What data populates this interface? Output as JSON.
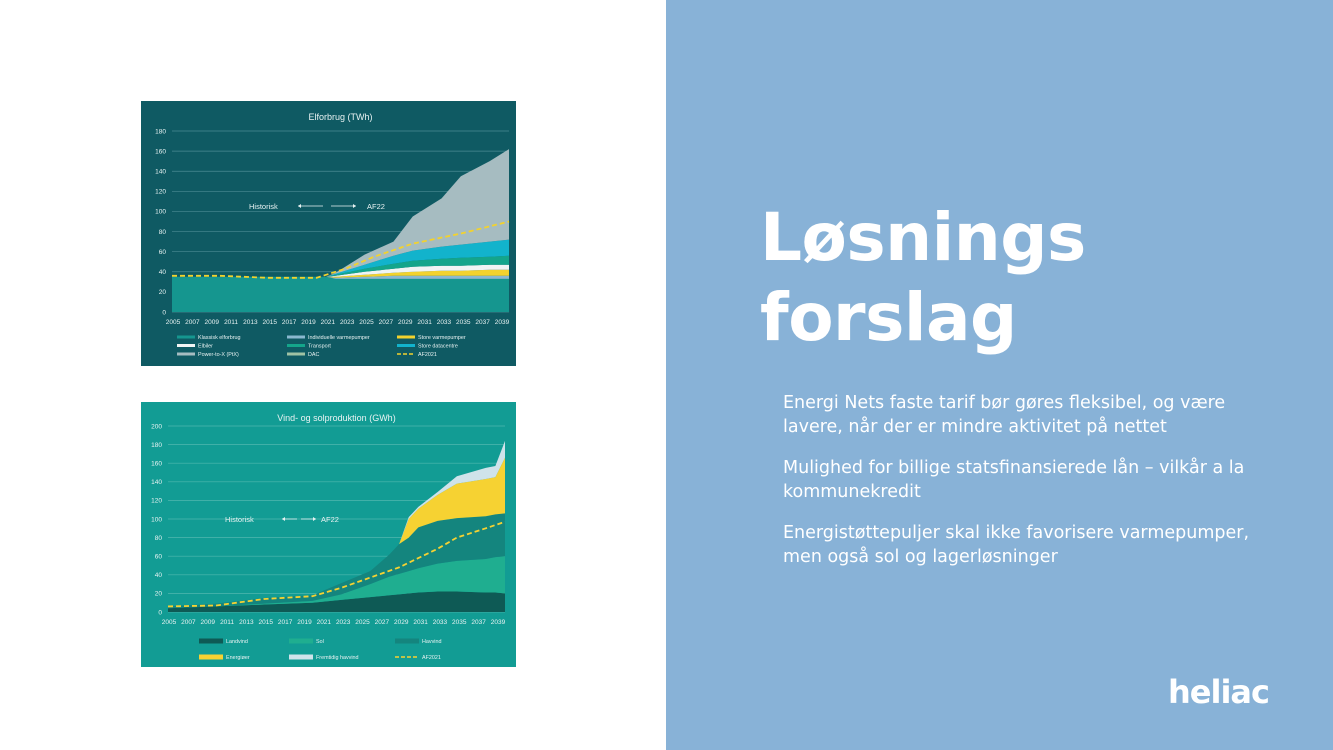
{
  "slide": {
    "title_line1": "Løsnings",
    "title_line2": "forslag",
    "bullets": [
      "Energi Nets faste tarif bør gøres fleksibel, og være lavere, når der er mindre aktivitet på nettet",
      "Mulighed for billige statsfinansierede lån – vilkår a la kommunekredit",
      "Energistøttepuljer skal ikke favorisere varmepumper, men også sol og lagerløsninger"
    ],
    "logo_text": "heliac",
    "colors": {
      "panel": "#88b2d7",
      "text": "#ffffff"
    }
  },
  "chart_data": [
    {
      "type": "area",
      "title": "Elforbrug (TWh)",
      "ylim": [
        0,
        180
      ],
      "yticks": [
        0,
        20,
        40,
        60,
        80,
        100,
        120,
        140,
        160,
        180
      ],
      "x": [
        2005,
        2020,
        2021,
        2022,
        2025,
        2028,
        2030,
        2033,
        2035,
        2038,
        2040
      ],
      "xtick_labels": [
        "2005",
        "2007",
        "2009",
        "2011",
        "2013",
        "2015",
        "2017",
        "2019",
        "2021",
        "2023",
        "2025",
        "2027",
        "2029",
        "2031",
        "2033",
        "2035",
        "2037",
        "2039"
      ],
      "annotations": [
        "Historisk",
        "AF22"
      ],
      "series": [
        {
          "name": "Klassisk elforbrug",
          "color": "#15968f",
          "values": [
            35,
            35,
            35,
            33,
            33,
            33,
            33,
            33,
            33,
            33,
            33
          ]
        },
        {
          "name": "Individuelle varmepumper",
          "color": "#8ab8cf",
          "values": [
            0,
            0,
            0,
            1,
            2,
            3,
            3,
            3,
            3,
            3,
            3
          ]
        },
        {
          "name": "Store varmepumper",
          "color": "#f2d22e",
          "values": [
            0,
            0,
            0,
            1,
            2,
            3,
            4,
            5,
            5,
            6,
            6
          ]
        },
        {
          "name": "Elbiler",
          "color": "#f0f4f4",
          "values": [
            0,
            0,
            0,
            1,
            3,
            4,
            5,
            5,
            5,
            5,
            5
          ]
        },
        {
          "name": "Transport",
          "color": "#14a58b",
          "values": [
            0,
            0,
            0,
            1,
            3,
            5,
            6,
            7,
            8,
            8,
            9
          ]
        },
        {
          "name": "Store datacentre",
          "color": "#12b3cc",
          "values": [
            0,
            0,
            0,
            1,
            4,
            8,
            10,
            12,
            13,
            15,
            16
          ]
        },
        {
          "name": "Power-to-X (PtX)",
          "color": "#a6bcc1",
          "values": [
            0,
            0,
            0,
            1,
            10,
            14,
            34,
            48,
            68,
            80,
            90
          ]
        },
        {
          "name": "DAC",
          "color": "#9fc2a4",
          "values": [
            0,
            0,
            0,
            0,
            0,
            0,
            0,
            0,
            0,
            0,
            0
          ]
        }
      ],
      "line": {
        "name": "AF2021",
        "color": "#f2d22e",
        "x": [
          2005,
          2010,
          2015,
          2020,
          2023,
          2026,
          2030,
          2035,
          2040
        ],
        "values": [
          36,
          36,
          34,
          34,
          43,
          55,
          68,
          78,
          90
        ]
      }
    },
    {
      "type": "area",
      "title": "Vind- og solproduktion (GWh)",
      "ylim": [
        0,
        200
      ],
      "yticks": [
        0,
        20,
        40,
        60,
        80,
        100,
        120,
        140,
        160,
        180,
        200
      ],
      "x": [
        2005,
        2010,
        2015,
        2020,
        2023,
        2026,
        2028,
        2029,
        2030,
        2031,
        2033,
        2035,
        2038,
        2039,
        2040
      ],
      "xtick_labels": [
        "2005",
        "2007",
        "2009",
        "2011",
        "2013",
        "2015",
        "2017",
        "2019",
        "2021",
        "2023",
        "2025",
        "2027",
        "2029",
        "2031",
        "2033",
        "2035",
        "2037",
        "2039"
      ],
      "annotations": [
        "Historisk",
        "AF22"
      ],
      "series": [
        {
          "name": "Landvind",
          "color": "#0e5a55",
          "values": [
            4,
            6,
            8,
            10,
            13,
            16,
            18,
            19,
            20,
            21,
            22,
            22,
            21,
            21,
            20
          ]
        },
        {
          "name": "Sol",
          "color": "#1fae90",
          "values": [
            0,
            0,
            1,
            2,
            6,
            14,
            20,
            22,
            24,
            26,
            30,
            33,
            36,
            38,
            40
          ]
        },
        {
          "name": "Havvind",
          "color": "#14857e",
          "values": [
            2,
            3,
            6,
            6,
            12,
            14,
            24,
            32,
            36,
            44,
            46,
            46,
            46,
            46,
            46
          ]
        },
        {
          "name": "Energiøer",
          "color": "#f6d232",
          "values": [
            0,
            0,
            0,
            0,
            0,
            0,
            0,
            0,
            20,
            20,
            28,
            37,
            40,
            40,
            60
          ]
        },
        {
          "name": "Fremtidig havvind",
          "color": "#cfe3ea",
          "values": [
            0,
            0,
            0,
            0,
            0,
            0,
            0,
            0,
            2,
            2,
            3,
            8,
            12,
            12,
            18
          ]
        }
      ],
      "line": {
        "name": "AF2021",
        "color": "#f6d232",
        "x": [
          2005,
          2010,
          2015,
          2020,
          2023,
          2026,
          2029,
          2031,
          2033,
          2035,
          2038,
          2040
        ],
        "values": [
          6,
          7,
          14,
          17,
          26,
          37,
          48,
          58,
          68,
          80,
          90,
          97
        ]
      }
    }
  ]
}
